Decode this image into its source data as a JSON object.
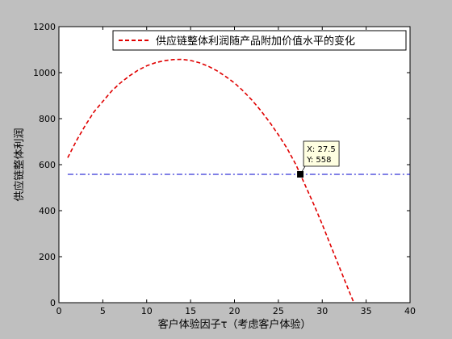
{
  "colors": {
    "figure_bg": "#bfbfbf",
    "axes_bg": "#ffffff",
    "curve": "#e00000",
    "hline": "#0000cc",
    "datatip_bg": "#ffffe1"
  },
  "chart_data": {
    "type": "line",
    "title": "",
    "xlabel": "客户体验因子τ（考虑客户体验）",
    "ylabel": "供应链整体利润",
    "xlim": [
      0,
      40
    ],
    "ylim": [
      0,
      1200
    ],
    "xticks": [
      0,
      5,
      10,
      15,
      20,
      25,
      30,
      35,
      40
    ],
    "yticks": [
      0,
      200,
      400,
      600,
      800,
      1000,
      1200
    ],
    "grid": false,
    "legend_position": "top-right",
    "series": [
      {
        "name": "供应链整体利润随产品附加价值水平的变化",
        "style": "dashed",
        "color": "#e00000",
        "x": [
          1,
          2,
          3,
          4,
          5,
          6,
          7,
          8,
          9,
          10,
          11,
          12,
          13,
          14,
          15,
          16,
          17,
          18,
          19,
          20,
          21,
          22,
          23,
          24,
          25,
          26,
          27,
          27.5,
          28,
          29,
          30,
          31,
          32,
          33,
          33.6
        ],
        "y": [
          630,
          705,
          770,
          830,
          875,
          920,
          955,
          985,
          1010,
          1030,
          1043,
          1052,
          1057,
          1058,
          1053,
          1043,
          1028,
          1008,
          983,
          955,
          920,
          880,
          835,
          785,
          730,
          670,
          600,
          558,
          515,
          430,
          340,
          245,
          150,
          55,
          0
        ]
      },
      {
        "name": "",
        "style": "dash-dot",
        "color": "#0000cc",
        "x": [
          1,
          40
        ],
        "y": [
          558,
          558
        ]
      }
    ],
    "annotations": [
      {
        "type": "datatip",
        "x": 27.5,
        "y": 558,
        "x_text": "X: 27.5",
        "y_text": "Y: 558"
      }
    ]
  }
}
